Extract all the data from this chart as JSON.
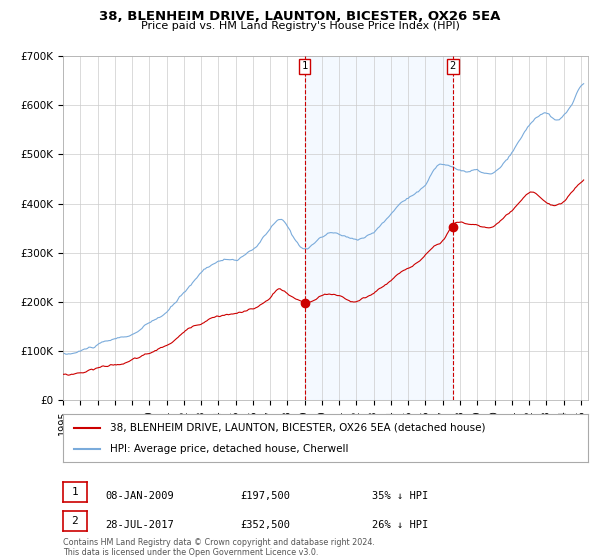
{
  "title": "38, BLENHEIM DRIVE, LAUNTON, BICESTER, OX26 5EA",
  "subtitle": "Price paid vs. HM Land Registry's House Price Index (HPI)",
  "legend_property": "38, BLENHEIM DRIVE, LAUNTON, BICESTER, OX26 5EA (detached house)",
  "legend_hpi": "HPI: Average price, detached house, Cherwell",
  "purchase1_date": "08-JAN-2009",
  "purchase1_price": 197500,
  "purchase1_label": "1",
  "purchase1_hpi_diff": "35% ↓ HPI",
  "purchase2_date": "28-JUL-2017",
  "purchase2_price": 352500,
  "purchase2_label": "2",
  "purchase2_hpi_diff": "26% ↓ HPI",
  "footer": "Contains HM Land Registry data © Crown copyright and database right 2024.\nThis data is licensed under the Open Government Licence v3.0.",
  "property_color": "#cc0000",
  "hpi_color": "#7aabdb",
  "shading_color": "#ddeeff",
  "vline_color": "#cc0000",
  "grid_color": "#cccccc",
  "background_color": "#ffffff",
  "ylim": [
    0,
    700000
  ],
  "yticks": [
    0,
    100000,
    200000,
    300000,
    400000,
    500000,
    600000,
    700000
  ],
  "ytick_labels": [
    "£0",
    "£100K",
    "£200K",
    "£300K",
    "£400K",
    "£500K",
    "£600K",
    "£700K"
  ]
}
